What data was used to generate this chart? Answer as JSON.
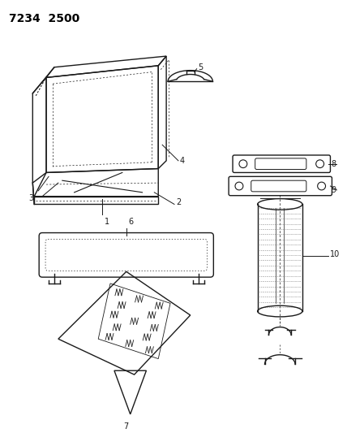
{
  "title": "7234  2500",
  "background_color": "#ffffff",
  "line_color": "#1a1a1a",
  "fig_width": 4.28,
  "fig_height": 5.33,
  "dpi": 100
}
